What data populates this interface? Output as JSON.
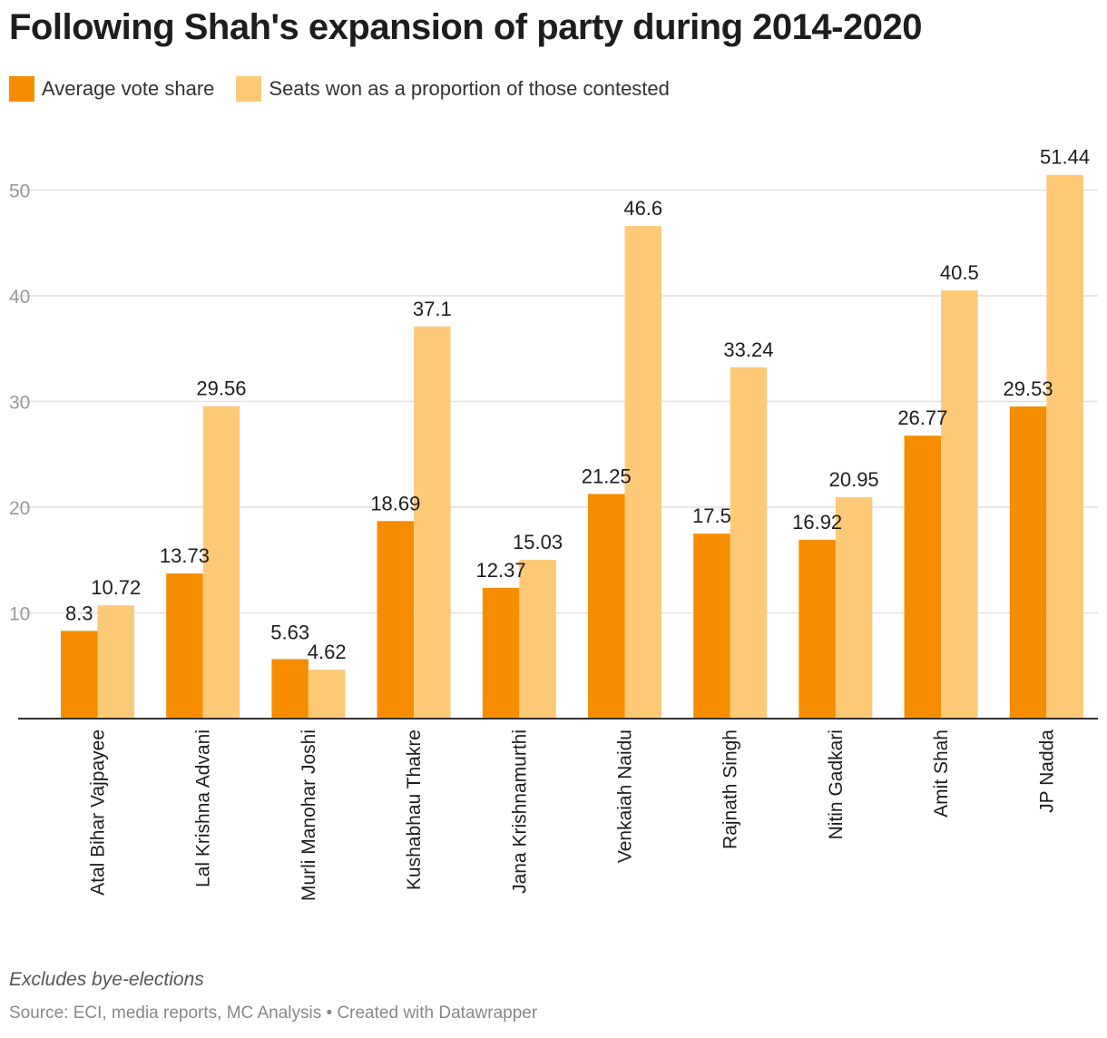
{
  "chart_data": {
    "type": "bar",
    "title": "Following Shah's expansion of party during 2014-2020",
    "categories": [
      "Atal Bihar Vajpayee",
      "Lal Krishna Advani",
      "Murli Manohar Joshi",
      "Kushabhau Thakre",
      "Jana Krishnamurthi",
      "Venkaiah Naidu",
      "Rajnath Singh",
      "Nitin Gadkari",
      "Amit Shah",
      "JP Nadda"
    ],
    "series": [
      {
        "name": "Average vote share",
        "color": "#f68d00",
        "values": [
          8.3,
          13.73,
          5.63,
          18.69,
          12.37,
          21.25,
          17.5,
          16.92,
          26.77,
          29.53
        ]
      },
      {
        "name": "Seats won as a proportion of those contested",
        "color": "#fec977",
        "values": [
          10.72,
          29.56,
          4.62,
          37.1,
          15.03,
          46.6,
          33.24,
          20.95,
          40.5,
          51.44
        ]
      }
    ],
    "yticks": [
      "10",
      "20",
      "30",
      "40",
      "50"
    ],
    "ylim": [
      0,
      55
    ],
    "grid": true,
    "legend_position": "top-left",
    "notes": "Excludes bye-elections",
    "source": "Source: ECI, media reports, MC Analysis • Created with Datawrapper"
  }
}
